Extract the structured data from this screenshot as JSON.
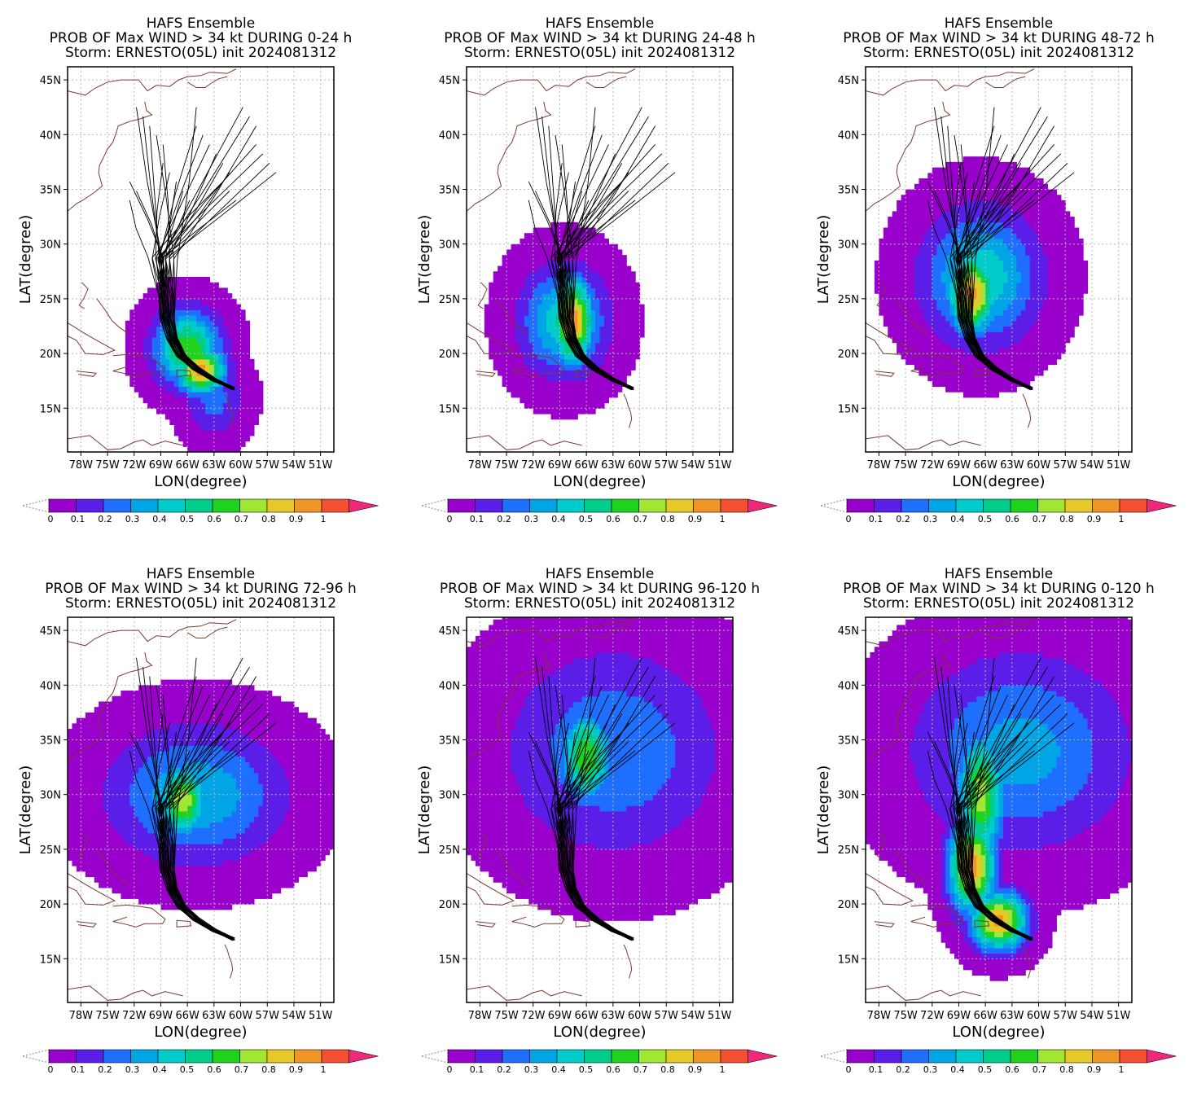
{
  "figure": {
    "colorbar": {
      "ticks": [
        "0",
        "0.1",
        "0.2",
        "0.3",
        "0.4",
        "0.5",
        "0.6",
        "0.7",
        "0.8",
        "0.9",
        "1"
      ],
      "colors": [
        "#9900cc",
        "#5a1ee8",
        "#1f6fff",
        "#00a5e6",
        "#00cccc",
        "#00cc8c",
        "#1ed21e",
        "#a0e632",
        "#e6c828",
        "#f09628",
        "#f55032"
      ],
      "over_color": "#f0287a"
    },
    "x_axis_label": "LON(degree)",
    "y_axis_label": "LAT(degree)",
    "x_ticks": [
      "78W",
      "75W",
      "72W",
      "69W",
      "66W",
      "63W",
      "60W",
      "57W",
      "54W",
      "51W"
    ],
    "y_ticks": [
      "15N",
      "20N",
      "25N",
      "30N",
      "35N",
      "40N",
      "45N"
    ]
  },
  "panels": [
    {
      "title_line1": "HAFS Ensemble",
      "title_line2": "PROB OF Max WIND > 34 kt DURING  0-24 h",
      "title_line3": "Storm: ERNESTO(05L) init 2024081312",
      "blob": [
        [
          -64.5,
          18.5,
          2.6,
          2.0,
          0.95
        ],
        [
          -66.0,
          20.5,
          3.5,
          3.2,
          0.7
        ],
        [
          -63.0,
          16.0,
          3.0,
          3.2,
          0.25
        ]
      ]
    },
    {
      "title_line1": "HAFS Ensemble",
      "title_line2": "PROB OF Max WIND > 34 kt DURING 24-48 h",
      "title_line3": "Storm: ERNESTO(05L) init 2024081312",
      "blob": [
        [
          -67.5,
          23.0,
          2.2,
          3.8,
          0.95
        ],
        [
          -68.5,
          23.0,
          4.5,
          4.5,
          0.5
        ]
      ]
    },
    {
      "title_line1": "HAFS Ensemble",
      "title_line2": "PROB OF Max WIND > 34 kt DURING 48-72 h",
      "title_line3": "Storm: ERNESTO(05L) init 2024081312",
      "blob": [
        [
          -67.5,
          25.5,
          2.5,
          3.5,
          0.95
        ],
        [
          -66.5,
          27.0,
          6.0,
          5.5,
          0.5
        ]
      ]
    },
    {
      "title_line1": "HAFS Ensemble",
      "title_line2": "PROB OF Max WIND > 34 kt DURING 72-96 h",
      "title_line3": "Storm: ERNESTO(05L) init 2024081312",
      "blob": [
        [
          -66.5,
          29.5,
          2.5,
          3.2,
          0.8
        ],
        [
          -65.0,
          30.0,
          9.0,
          5.5,
          0.4
        ]
      ]
    },
    {
      "title_line1": "HAFS Ensemble",
      "title_line2": "PROB OF Max WIND > 34 kt DURING 96-120 h",
      "title_line3": "Storm: ERNESTO(05L) init 2024081312",
      "blob": [
        [
          -66.0,
          33.5,
          2.8,
          4.0,
          0.7
        ],
        [
          -63.0,
          34.0,
          11.0,
          8.5,
          0.3
        ]
      ]
    },
    {
      "title_line1": "HAFS Ensemble",
      "title_line2": "PROB OF Max WIND > 34 kt DURING 0-120 h",
      "title_line3": "Storm: ERNESTO(05L) init 2024081312",
      "blob": [
        [
          -64.5,
          18.5,
          3.0,
          2.5,
          0.95
        ],
        [
          -67.5,
          23.5,
          2.5,
          4.0,
          0.95
        ],
        [
          -66.5,
          30.0,
          2.5,
          5.5,
          0.75
        ],
        [
          -62.0,
          34.0,
          11.0,
          8.0,
          0.35
        ]
      ]
    }
  ]
}
